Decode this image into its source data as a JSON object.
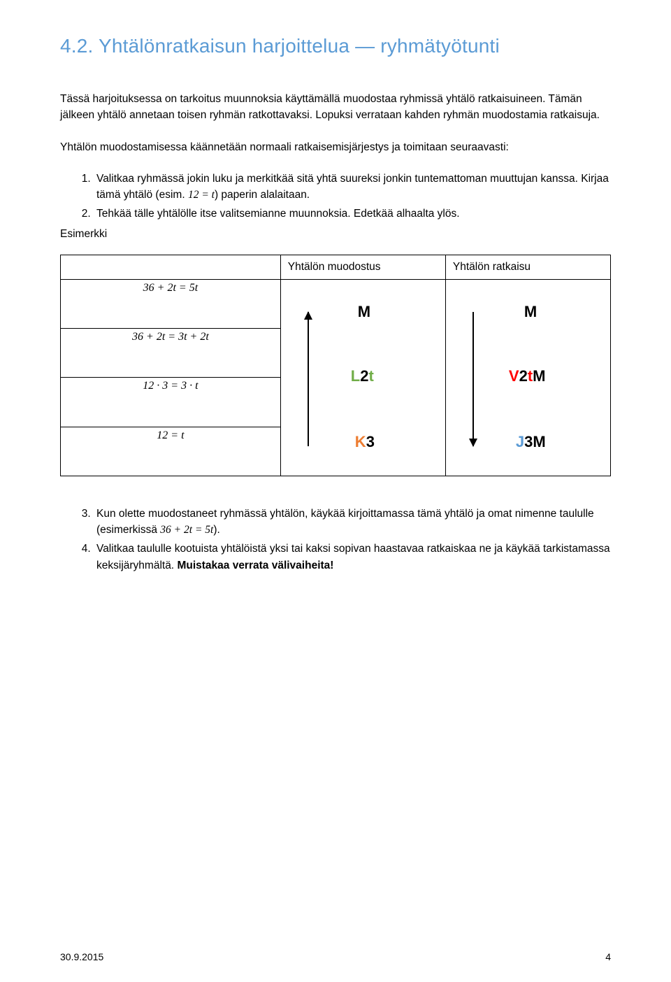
{
  "heading": "4.2. Yhtälönratkaisun harjoittelua — ryhmätyötunti",
  "para1": "Tässä harjoituksessa on tarkoitus muunnoksia käyttämällä muodostaa ryhmissä yhtälö ratkaisuineen. Tämän jälkeen yhtälö annetaan toisen ryhmän ratkottavaksi. Lopuksi verrataan kahden ryhmän muodostamia ratkaisuja.",
  "para2": "Yhtälön muodostamisessa käännetään normaali ratkaisemisjärjestys ja toimitaan seuraavasti:",
  "step1a": "Valitkaa ryhmässä jokin luku ja merkitkää sitä yhtä suureksi jonkin tuntemattoman muuttujan kanssa. Kirjaa tämä yhtälö (esim. ",
  "step1eq": "12 =  t",
  "step1b": ") paperin alalaitaan.",
  "step2": "Tehkää tälle yhtälölle itse valitsemianne muunnoksia. Edetkää alhaalta ylös.",
  "esimerkki": "Esimerkki",
  "table": {
    "col_form": "Yhtälön muodostus",
    "col_solve": "Yhtälön ratkaisu",
    "eq1": "36 + 2t = 5t",
    "eq2": "36 + 2t = 3t + 2t",
    "eq3": "12 · 3 = 3 · t",
    "eq4": "12 =  t"
  },
  "tags": {
    "M1": {
      "text": "M",
      "parts": [
        {
          "t": "M",
          "c": "#000000"
        }
      ]
    },
    "M2": {
      "text": "M",
      "parts": [
        {
          "t": "M",
          "c": "#000000"
        }
      ]
    },
    "L2t": {
      "text": "L2t",
      "parts": [
        {
          "t": "L",
          "c": "#70ad47"
        },
        {
          "t": "2",
          "c": "#000000"
        },
        {
          "t": "t",
          "c": "#70ad47"
        }
      ]
    },
    "V2tM": {
      "text": "V2tM",
      "parts": [
        {
          "t": "V",
          "c": "#ff0000"
        },
        {
          "t": "2",
          "c": "#000000"
        },
        {
          "t": "t",
          "c": "#ff0000"
        },
        {
          "t": "M",
          "c": "#000000"
        }
      ]
    },
    "K3": {
      "text": "K3",
      "parts": [
        {
          "t": "K",
          "c": "#ed7d31"
        },
        {
          "t": "3",
          "c": "#000000"
        }
      ]
    },
    "J3M": {
      "text": "J3M",
      "parts": [
        {
          "t": "J",
          "c": "#5b9bd5"
        },
        {
          "t": "3",
          "c": "#000000"
        },
        {
          "t": "M",
          "c": "#000000"
        }
      ]
    }
  },
  "step3a": "Kun olette muodostaneet ryhmässä yhtälön, käykää kirjoittamassa tämä yhtälö ja omat nimenne taululle (esimerkissä ",
  "step3eq": "36 + 2t = 5t",
  "step3b": ").",
  "step4": "Valitkaa taululle kootuista yhtälöistä yksi tai kaksi sopivan haastavaa ratkaiskaa ne ja käykää tarkistamassa keksijäryhmältä. Muistakaa verrata välivaiheita!",
  "footer_date": "30.9.2015",
  "footer_page": "4",
  "colors": {
    "heading": "#5b9bd5",
    "green": "#70ad47",
    "red": "#ff0000",
    "orange": "#ed7d31",
    "blue": "#5b9bd5",
    "black": "#000000",
    "border": "#000000"
  }
}
